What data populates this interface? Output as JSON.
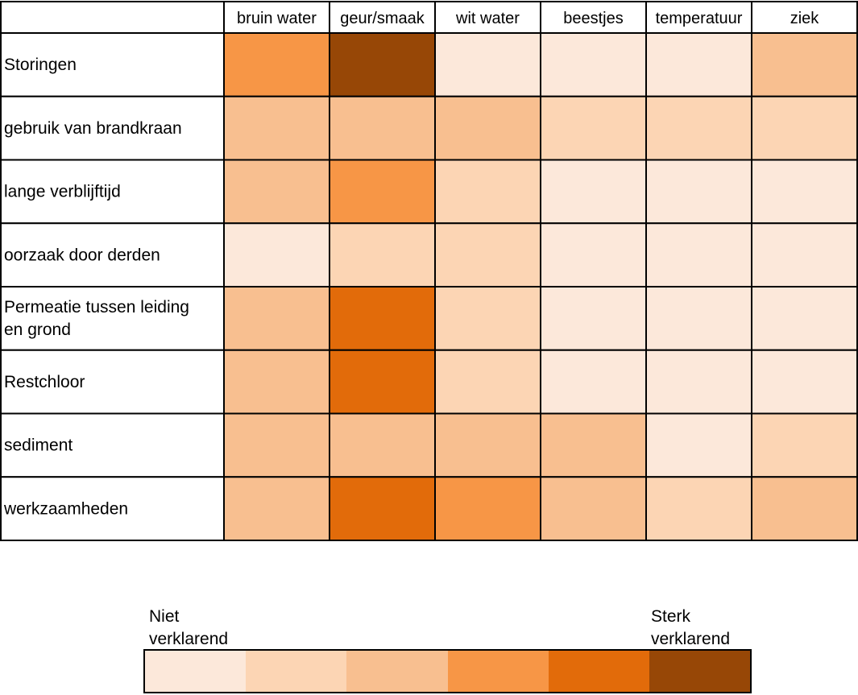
{
  "chart_data": {
    "type": "heatmap",
    "columns": [
      "bruin water",
      "geur/smaak",
      "wit water",
      "beestjes",
      "temperatuur",
      "ziek"
    ],
    "rows": [
      {
        "label": [
          "Storingen"
        ],
        "levels": [
          4,
          6,
          1,
          1,
          1,
          3
        ]
      },
      {
        "label": [
          "gebruik van brandkraan"
        ],
        "levels": [
          3,
          3,
          3,
          2,
          2,
          2
        ]
      },
      {
        "label": [
          "lange verblijftijd"
        ],
        "levels": [
          3,
          4,
          2,
          1,
          1,
          1
        ]
      },
      {
        "label": [
          "oorzaak door derden"
        ],
        "levels": [
          1,
          2,
          2,
          1,
          1,
          1
        ]
      },
      {
        "label": [
          "Permeatie tussen leiding",
          "en grond"
        ],
        "levels": [
          3,
          5,
          2,
          1,
          1,
          1
        ]
      },
      {
        "label": [
          "Restchloor"
        ],
        "levels": [
          3,
          5,
          2,
          1,
          1,
          1
        ]
      },
      {
        "label": [
          "sediment"
        ],
        "levels": [
          3,
          3,
          3,
          3,
          1,
          2
        ]
      },
      {
        "label": [
          "werkzaamheden"
        ],
        "levels": [
          3,
          5,
          4,
          3,
          2,
          3
        ]
      }
    ],
    "scale": {
      "levels": [
        1,
        2,
        3,
        4,
        5,
        6
      ],
      "colors": [
        "#fce8da",
        "#fcd5b4",
        "#f8bf90",
        "#f79646",
        "#e26b0a",
        "#974706"
      ],
      "low_label": [
        "Niet",
        "verklarend"
      ],
      "high_label": [
        "Sterk",
        "verklarend"
      ]
    }
  }
}
